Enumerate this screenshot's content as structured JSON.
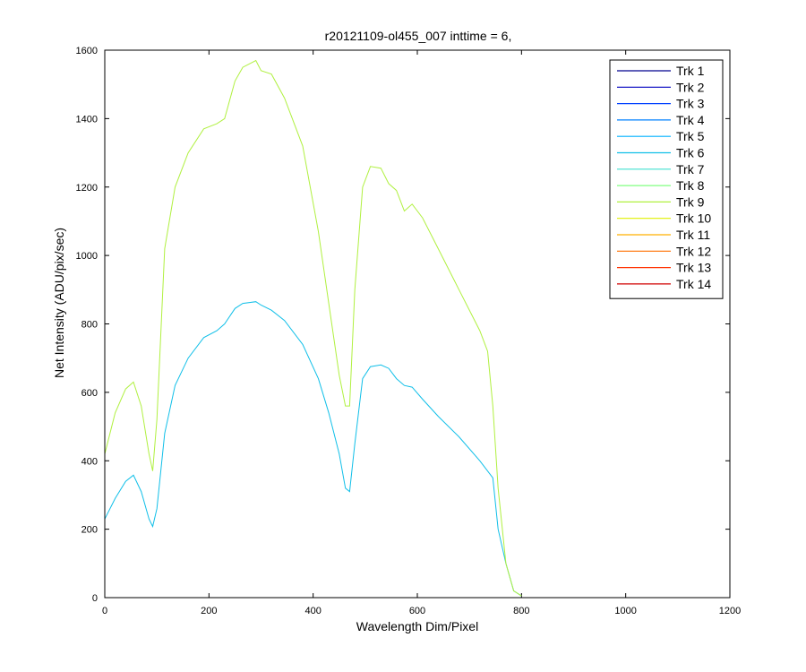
{
  "chart_data": {
    "type": "line",
    "title": "r20121109-ol455_007 inttime = 6,",
    "xlabel": "Wavelength Dim/Pixel",
    "ylabel": "Net Intensity (ADU/pix/sec)",
    "xlim": [
      0,
      1200
    ],
    "ylim": [
      0,
      1600
    ],
    "xticks": [
      0,
      200,
      400,
      600,
      800,
      1000,
      1200
    ],
    "yticks": [
      0,
      200,
      400,
      600,
      800,
      1000,
      1200,
      1400,
      1600
    ],
    "grid": false,
    "legend_position": "top-right",
    "series": [
      {
        "name": "Trk 1",
        "color": "#00008f",
        "x": [
          0,
          1024
        ],
        "y": [
          0,
          0
        ]
      },
      {
        "name": "Trk 2",
        "color": "#0000bf",
        "x": [
          0,
          1024
        ],
        "y": [
          0,
          0
        ]
      },
      {
        "name": "Trk 3",
        "color": "#0040ff",
        "x": [
          0,
          1024
        ],
        "y": [
          0,
          0
        ]
      },
      {
        "name": "Trk 4",
        "color": "#0080ff",
        "x": [
          0,
          1024
        ],
        "y": [
          0,
          0
        ]
      },
      {
        "name": "Trk 5",
        "color": "#00b0ff",
        "x": [
          0,
          1024
        ],
        "y": [
          0,
          0
        ]
      },
      {
        "name": "Trk 6",
        "color": "#10bfe8",
        "x": [
          0,
          20,
          40,
          55,
          70,
          85,
          92,
          100,
          115,
          135,
          160,
          190,
          215,
          230,
          250,
          265,
          290,
          300,
          320,
          345,
          380,
          410,
          430,
          450,
          462,
          470,
          480,
          495,
          510,
          530,
          545,
          560,
          575,
          590,
          610,
          640,
          680,
          720,
          745,
          755,
          770,
          785,
          800
        ],
        "y": [
          230,
          290,
          340,
          358,
          310,
          230,
          208,
          260,
          480,
          620,
          700,
          760,
          780,
          800,
          845,
          860,
          865,
          855,
          840,
          810,
          740,
          640,
          540,
          420,
          320,
          310,
          450,
          640,
          675,
          680,
          670,
          640,
          620,
          615,
          580,
          530,
          470,
          400,
          350,
          200,
          100,
          20,
          5
        ]
      },
      {
        "name": "Trk 7",
        "color": "#40e0d0",
        "x": [
          0,
          1024
        ],
        "y": [
          0,
          0
        ]
      },
      {
        "name": "Trk 8",
        "color": "#80ff80",
        "x": [
          0,
          1024
        ],
        "y": [
          0,
          0
        ]
      },
      {
        "name": "Trk 9",
        "color": "#b0f040",
        "x": [
          0,
          20,
          40,
          55,
          70,
          85,
          92,
          100,
          115,
          135,
          160,
          190,
          215,
          230,
          250,
          265,
          290,
          300,
          320,
          345,
          380,
          410,
          430,
          450,
          462,
          470,
          480,
          495,
          510,
          530,
          545,
          560,
          575,
          590,
          610,
          640,
          680,
          720,
          735,
          745,
          755,
          770,
          785,
          800
        ],
        "y": [
          420,
          540,
          610,
          630,
          560,
          420,
          370,
          520,
          1020,
          1200,
          1300,
          1370,
          1385,
          1400,
          1510,
          1550,
          1570,
          1540,
          1530,
          1460,
          1320,
          1070,
          860,
          650,
          560,
          560,
          900,
          1200,
          1260,
          1255,
          1210,
          1190,
          1130,
          1150,
          1110,
          1020,
          900,
          780,
          720,
          560,
          320,
          100,
          20,
          5
        ]
      },
      {
        "name": "Trk 10",
        "color": "#e0f000",
        "x": [
          0,
          1024
        ],
        "y": [
          0,
          0
        ]
      },
      {
        "name": "Trk 11",
        "color": "#ffb000",
        "x": [
          0,
          1024
        ],
        "y": [
          0,
          0
        ]
      },
      {
        "name": "Trk 12",
        "color": "#ff7000",
        "x": [
          0,
          1024
        ],
        "y": [
          0,
          0
        ]
      },
      {
        "name": "Trk 13",
        "color": "#ff3000",
        "x": [
          0,
          1024
        ],
        "y": [
          0,
          0
        ]
      },
      {
        "name": "Trk 14",
        "color": "#d00000",
        "x": [
          0,
          1024
        ],
        "y": [
          0,
          0
        ]
      }
    ]
  }
}
